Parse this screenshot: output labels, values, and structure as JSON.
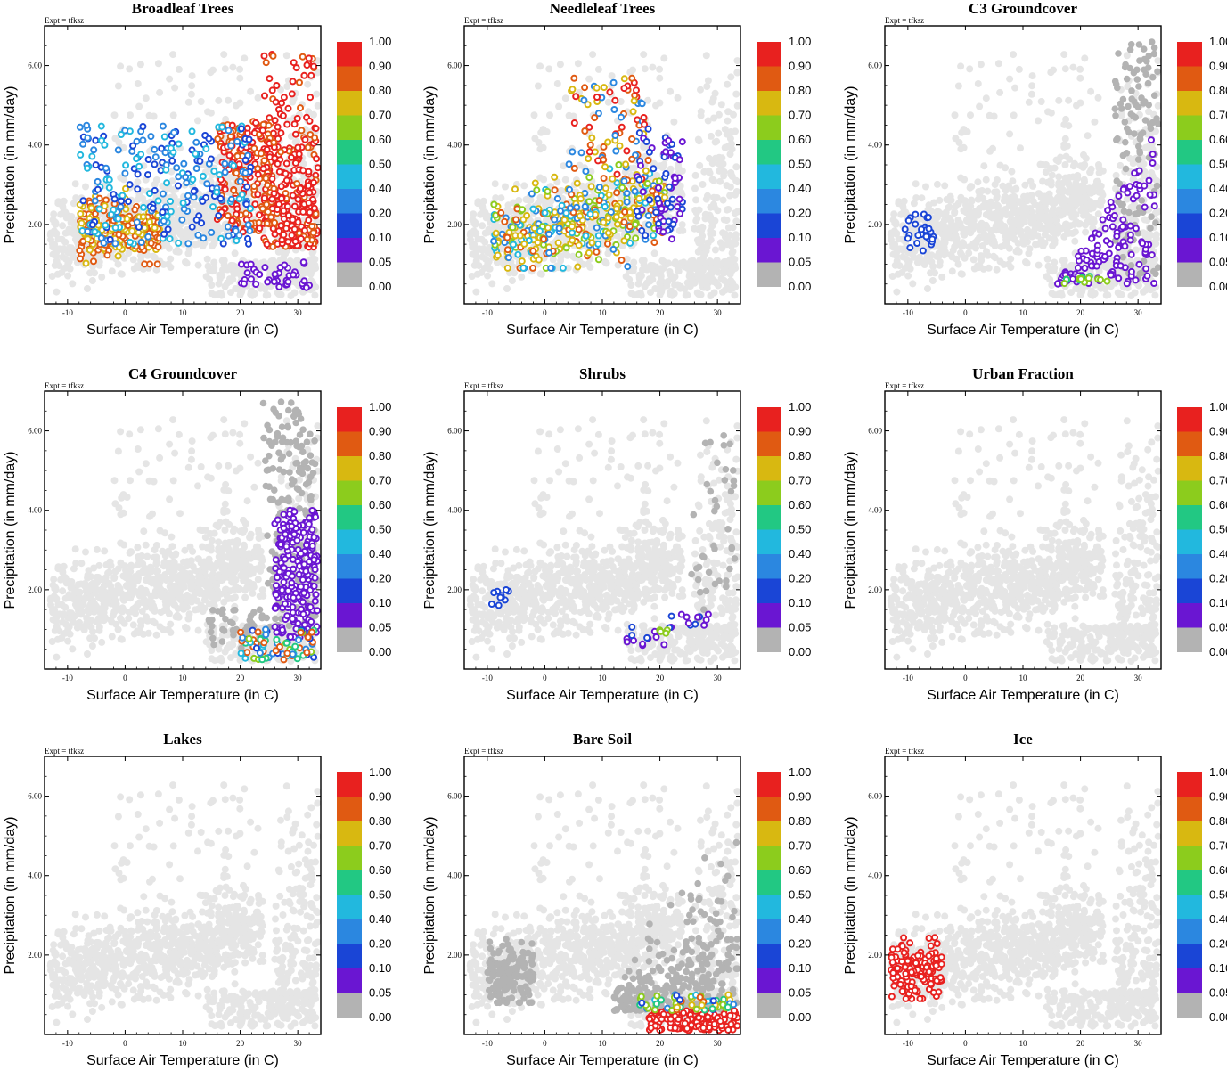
{
  "chart_data": {
    "type": "scatter",
    "layout": "3x3 small multiples",
    "experiment_label": "Expt = tfksz",
    "xlabel": "Surface Air Temperature (in C)",
    "ylabel": "Precipitation (in mm/day)",
    "xlim": [
      -14,
      34
    ],
    "ylim": [
      0,
      7
    ],
    "x_ticks": [
      "-10",
      "0",
      "10",
      "20",
      "30"
    ],
    "y_ticks": [
      "2.00",
      "4.00",
      "6.00"
    ],
    "colorbar": {
      "labels": [
        "1.00",
        "0.90",
        "0.80",
        "0.70",
        "0.60",
        "0.50",
        "0.40",
        "0.20",
        "0.10",
        "0.05",
        "0.00"
      ],
      "colors": [
        "#e8211f",
        "#e05a12",
        "#d8b811",
        "#8ccc1d",
        "#22c883",
        "#22b8de",
        "#2b87e0",
        "#1a45d6",
        "#6a16d2",
        "#b3b3b3"
      ],
      "background_color": "#e5e5e5"
    },
    "panels": [
      {
        "title": "Broadleaf Trees"
      },
      {
        "title": "Needleleaf Trees"
      },
      {
        "title": "C3 Groundcover"
      },
      {
        "title": "C4 Groundcover"
      },
      {
        "title": "Shrubs"
      },
      {
        "title": "Urban Fraction"
      },
      {
        "title": "Lakes"
      },
      {
        "title": "Bare Soil"
      },
      {
        "title": "Ice"
      }
    ]
  }
}
